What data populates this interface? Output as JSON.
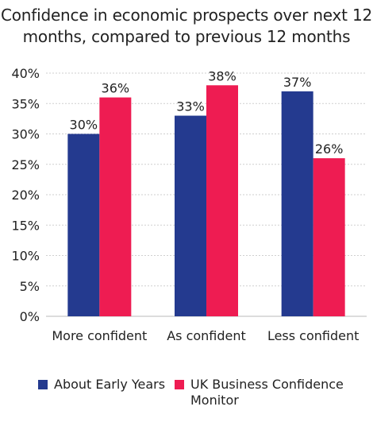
{
  "chart_data": {
    "type": "bar",
    "title": "Confidence in economic prospects over next 12 months, compared to previous 12 months",
    "categories": [
      "More confident",
      "As confident",
      "Less confident"
    ],
    "series": [
      {
        "name": "About Early Years",
        "values": [
          30,
          33,
          37
        ],
        "color": "#243a8f"
      },
      {
        "name": "UK Business Confidence Monitor",
        "values": [
          36,
          38,
          26
        ],
        "color": "#ee1c52"
      }
    ],
    "value_suffix": "%",
    "ylim": [
      0,
      40
    ],
    "yticks": [
      0,
      5,
      10,
      15,
      20,
      25,
      30,
      35,
      40
    ],
    "grid": true,
    "legend_position": "bottom",
    "xlabel": "",
    "ylabel": ""
  }
}
